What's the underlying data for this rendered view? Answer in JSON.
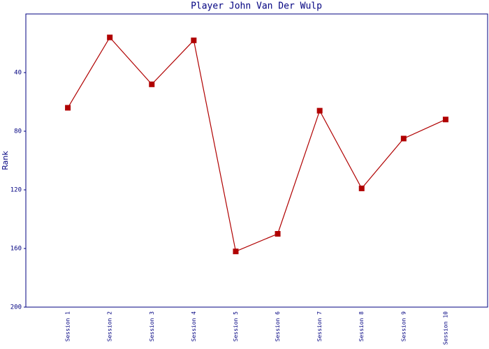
{
  "chart_data": {
    "type": "line",
    "title": "Player John Van Der Wulp",
    "y_label": "Rank",
    "categories": [
      "Session 1",
      "Session 2",
      "Session 3",
      "Session 4",
      "Session 5",
      "Session 6",
      "Session 7",
      "Session 8",
      "Session 9",
      "Session 10"
    ],
    "series": [
      {
        "name": "John Van Der Wulp",
        "color": "#b00000",
        "values": [
          64,
          16,
          48,
          18,
          162,
          150,
          66,
          119,
          85,
          72
        ]
      }
    ],
    "ylim": [
      200,
      0
    ],
    "yticks": [
      40,
      80,
      120,
      160,
      200
    ],
    "grid": false
  }
}
